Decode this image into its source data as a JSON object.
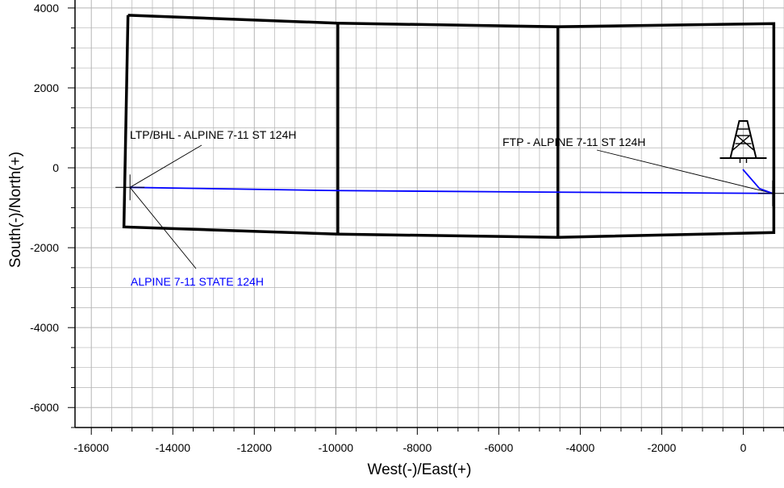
{
  "chart_data": {
    "type": "scatter",
    "title": "",
    "xlabel": "West(-)/East(+)",
    "ylabel": "South(-)/North(+)",
    "xlim": [
      -16400,
      1000
    ],
    "ylim": [
      -6500,
      4200
    ],
    "x_ticks": [
      -16000,
      -14000,
      -12000,
      -10000,
      -8000,
      -6000,
      -4000,
      -2000,
      0
    ],
    "y_ticks": [
      -6000,
      -4000,
      -2000,
      0,
      2000,
      4000
    ],
    "minor_step": 500,
    "grid": true,
    "lease_boundaries": [
      [
        [
          -15100,
          3820
        ],
        [
          -9950,
          3620
        ],
        [
          -4550,
          3530
        ],
        [
          750,
          3610
        ],
        [
          750,
          -1620
        ],
        [
          -4550,
          -1740
        ],
        [
          -9950,
          -1660
        ],
        [
          -15200,
          -1480
        ],
        [
          -15100,
          3820
        ]
      ],
      [
        [
          -9950,
          3620
        ],
        [
          -9950,
          -1660
        ]
      ],
      [
        [
          -4550,
          3530
        ],
        [
          -4550,
          -1740
        ]
      ]
    ],
    "series": [
      {
        "name": "ALPINE 7-11 STATE 124H",
        "color": "#0000ff",
        "x": [
          -10,
          400,
          720,
          -4550,
          -10000,
          -15050
        ],
        "y": [
          -40,
          -520,
          -640,
          -610,
          -570,
          -490
        ]
      }
    ],
    "markers": [
      {
        "label": "FTP - ALPINE 7-11 ST 124H",
        "x": 720,
        "y": -640
      },
      {
        "label": "LTP/BHL - ALPINE 7-11 ST 124H",
        "x": -15050,
        "y": -490
      }
    ],
    "rig_icon": "drilling-rig-icon",
    "rig_location": {
      "x": 0,
      "y": 0
    },
    "colors": {
      "boundary": "#000000",
      "wellpath": "#0000ff",
      "grid": "#b4b4b4",
      "leader": "#000000"
    }
  }
}
